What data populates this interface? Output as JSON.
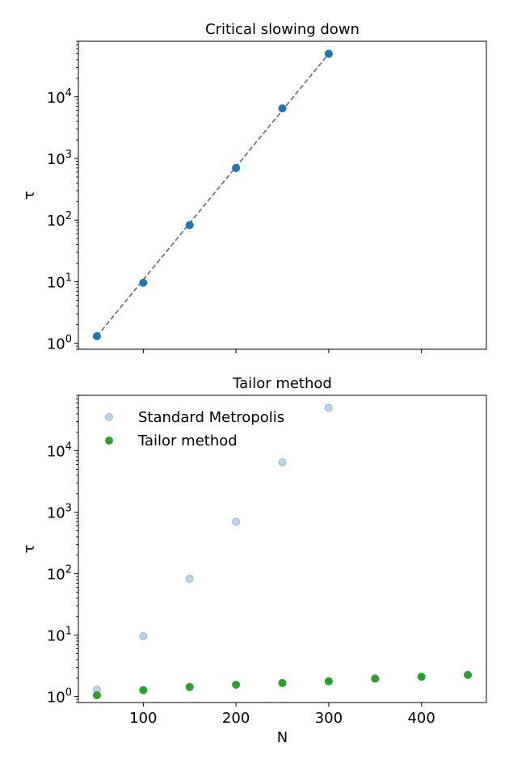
{
  "chart_data": [
    {
      "type": "scatter",
      "title": "Critical slowing down",
      "xlabel": "",
      "ylabel": "τ",
      "xlim": [
        30,
        470
      ],
      "ylim": [
        0.8,
        80000
      ],
      "yscale": "log",
      "x_ticks": [
        100,
        200,
        300,
        400
      ],
      "x_tick_labels_visible": false,
      "y_ticks": [
        {
          "value": 1,
          "base": "10",
          "exp": "0"
        },
        {
          "value": 10,
          "base": "10",
          "exp": "1"
        },
        {
          "value": 100,
          "base": "10",
          "exp": "2"
        },
        {
          "value": 1000,
          "base": "10",
          "exp": "3"
        },
        {
          "value": 10000,
          "base": "10",
          "exp": "4"
        }
      ],
      "series": [
        {
          "color": "#1f77b4",
          "alpha": 1.0,
          "points": [
            {
              "x": 50,
              "y": 1.3
            },
            {
              "x": 100,
              "y": 9.6
            },
            {
              "x": 150,
              "y": 83
            },
            {
              "x": 200,
              "y": 700
            },
            {
              "x": 250,
              "y": 6500
            },
            {
              "x": 300,
              "y": 50000
            }
          ]
        }
      ],
      "fit_line": {
        "style": "dashed",
        "color": "#777777",
        "x": [
          50,
          300
        ],
        "y": [
          1.3,
          50000
        ]
      },
      "grid": false,
      "legend": null
    },
    {
      "type": "scatter",
      "title": "Tailor method",
      "xlabel": "N",
      "ylabel": "τ",
      "xlim": [
        30,
        470
      ],
      "ylim": [
        0.8,
        80000
      ],
      "yscale": "log",
      "x_ticks": [
        100,
        200,
        300,
        400
      ],
      "x_tick_labels": [
        "100",
        "200",
        "300",
        "400"
      ],
      "y_ticks": [
        {
          "value": 1,
          "base": "10",
          "exp": "0"
        },
        {
          "value": 10,
          "base": "10",
          "exp": "1"
        },
        {
          "value": 100,
          "base": "10",
          "exp": "2"
        },
        {
          "value": 1000,
          "base": "10",
          "exp": "3"
        },
        {
          "value": 10000,
          "base": "10",
          "exp": "4"
        }
      ],
      "series": [
        {
          "name": "Standard Metropolis",
          "color": "#1f77b4",
          "alpha": 0.3,
          "points": [
            {
              "x": 50,
              "y": 1.3
            },
            {
              "x": 100,
              "y": 9.6
            },
            {
              "x": 150,
              "y": 83
            },
            {
              "x": 200,
              "y": 700
            },
            {
              "x": 250,
              "y": 6500
            },
            {
              "x": 300,
              "y": 50000
            }
          ]
        },
        {
          "name": "Tailor method",
          "color": "#2ca02c",
          "alpha": 1.0,
          "points": [
            {
              "x": 50,
              "y": 1.05
            },
            {
              "x": 100,
              "y": 1.27
            },
            {
              "x": 150,
              "y": 1.43
            },
            {
              "x": 200,
              "y": 1.56
            },
            {
              "x": 250,
              "y": 1.66
            },
            {
              "x": 300,
              "y": 1.77
            },
            {
              "x": 350,
              "y": 1.96
            },
            {
              "x": 400,
              "y": 2.1
            },
            {
              "x": 450,
              "y": 2.25
            }
          ]
        }
      ],
      "grid": false,
      "legend": "top-left"
    }
  ]
}
